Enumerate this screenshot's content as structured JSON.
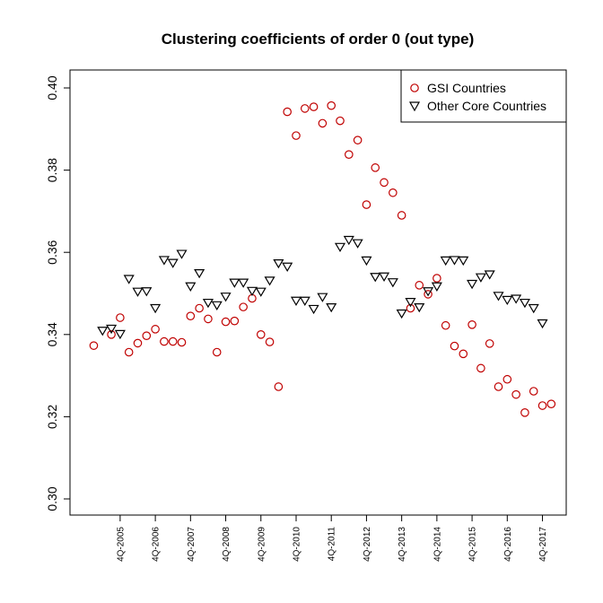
{
  "chart_data": {
    "type": "scatter",
    "title": "Clustering coefficients of order 0 (out type)",
    "xlabel": "",
    "ylabel": "",
    "ylim": [
      0.3,
      0.4
    ],
    "yticks": [
      "0.30",
      "0.32",
      "0.34",
      "0.36",
      "0.38",
      "0.40"
    ],
    "ytick_values": [
      0.3,
      0.32,
      0.34,
      0.36,
      0.38,
      0.4
    ],
    "xticks": [
      {
        "label": "4Q-2005",
        "x": 4
      },
      {
        "label": "4Q-2006",
        "x": 8
      },
      {
        "label": "4Q-2007",
        "x": 12
      },
      {
        "label": "4Q-2008",
        "x": 16
      },
      {
        "label": "4Q-2009",
        "x": 20
      },
      {
        "label": "4Q-2010",
        "x": 24
      },
      {
        "label": "4Q-2011",
        "x": 28
      },
      {
        "label": "4Q-2012",
        "x": 32
      },
      {
        "label": "4Q-2013",
        "x": 36
      },
      {
        "label": "4Q-2014",
        "x": 40
      },
      {
        "label": "4Q-2015",
        "x": 44
      },
      {
        "label": "4Q-2016",
        "x": 48
      },
      {
        "label": "4Q-2017",
        "x": 52
      }
    ],
    "xlim": [
      -1.7,
      54.7
    ],
    "legend": {
      "position": "top-right"
    },
    "series": [
      {
        "name": "GSI Countries",
        "marker": "circle",
        "color": "#c00000",
        "x": [
          1,
          3,
          4,
          5,
          6,
          7,
          8,
          9,
          10,
          11,
          12,
          13,
          14,
          15,
          16,
          17,
          18,
          19,
          20,
          21,
          22,
          23,
          24,
          25,
          26,
          27,
          28,
          29,
          30,
          31,
          32,
          33,
          34,
          35,
          36,
          37,
          38,
          39,
          40,
          41,
          42,
          43,
          44,
          45,
          46,
          47,
          48,
          49,
          50,
          51,
          52,
          53
        ],
        "values": [
          0.3373,
          0.34,
          0.3441,
          0.3357,
          0.3379,
          0.3397,
          0.3413,
          0.3383,
          0.3383,
          0.3381,
          0.3445,
          0.3464,
          0.3438,
          0.3357,
          0.3431,
          0.3433,
          0.3467,
          0.3488,
          0.34,
          0.3382,
          0.3273,
          0.3942,
          0.3884,
          0.395,
          0.3954,
          0.3914,
          0.3957,
          0.392,
          0.3838,
          0.3873,
          0.3716,
          0.3806,
          0.377,
          0.3745,
          0.369,
          0.3464,
          0.352,
          0.3498,
          0.3537,
          0.3422,
          0.3372,
          0.3353,
          0.3424,
          0.3318,
          0.3378,
          0.3273,
          0.3291,
          0.3254,
          0.321,
          0.3262,
          0.3227,
          0.3231
        ]
      },
      {
        "name": "Other Core Countries",
        "marker": "triangle-down",
        "color": "#000000",
        "x": [
          2,
          3,
          4,
          5,
          6,
          7,
          8,
          9,
          10,
          11,
          12,
          13,
          14,
          15,
          16,
          17,
          18,
          19,
          20,
          21,
          22,
          23,
          24,
          25,
          26,
          27,
          28,
          29,
          30,
          31,
          32,
          33,
          34,
          35,
          36,
          37,
          38,
          39,
          40,
          41,
          42,
          43,
          44,
          45,
          46,
          47,
          48,
          49,
          50,
          51,
          52
        ],
        "values": [
          0.341,
          0.3415,
          0.3402,
          0.3536,
          0.3505,
          0.3506,
          0.3465,
          0.3582,
          0.3575,
          0.3597,
          0.3518,
          0.355,
          0.3478,
          0.3472,
          0.3493,
          0.3527,
          0.3527,
          0.3507,
          0.3505,
          0.3532,
          0.3574,
          0.3566,
          0.3483,
          0.3483,
          0.3463,
          0.3492,
          0.3467,
          0.3614,
          0.3631,
          0.3623,
          0.3581,
          0.3541,
          0.3542,
          0.3528,
          0.3452,
          0.348,
          0.3467,
          0.3506,
          0.3518,
          0.3581,
          0.3582,
          0.3581,
          0.3524,
          0.354,
          0.3547,
          0.3495,
          0.3485,
          0.3488,
          0.3478,
          0.3465,
          0.3428
        ]
      }
    ]
  }
}
